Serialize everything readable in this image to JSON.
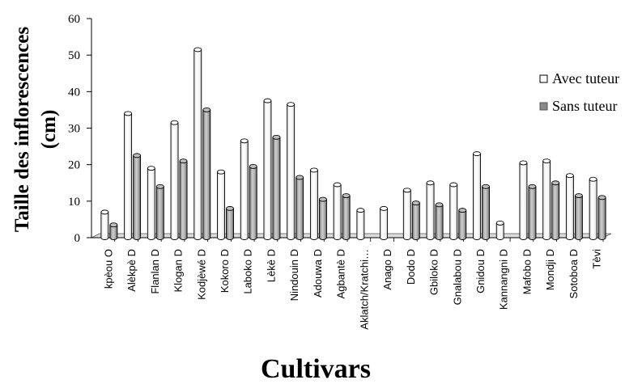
{
  "chart_data": {
    "type": "bar",
    "title": "",
    "xlabel": "Cultivars",
    "ylabel_line1": "Taille des inflorescences",
    "ylabel_line2": "(cm)",
    "ylim": [
      0,
      60
    ],
    "yticks": [
      "0",
      "10",
      "20",
      "30",
      "40",
      "50",
      "60"
    ],
    "grid": false,
    "legend_position": "right",
    "categories": [
      "kpèou O",
      "Alèkpè D",
      "Flanlan D",
      "Klogan D",
      "Kodjèwé D",
      "Kokoro D",
      "Laboko D",
      "Lèkè D",
      "Nindouin D",
      "Adouwa D",
      "Agbantè D",
      "Aklatch/Kratchi…",
      "Anago D",
      "Dodo D",
      "Gbiloko D",
      "Gnalabou D",
      "Gnidou D",
      "Kannangni D",
      "Mafobo D",
      "Mondji D",
      "Sotoboa D",
      "Tèvi"
    ],
    "series": [
      {
        "name": "Avec tuteur",
        "color": "#ffffff",
        "values": [
          7,
          34,
          19,
          31.5,
          51.5,
          18,
          26.5,
          37.5,
          36.5,
          18.5,
          14.5,
          7.5,
          8,
          13,
          15,
          14.5,
          23,
          4,
          20.5,
          21,
          17,
          16
        ]
      },
      {
        "name": "Sans tuteur",
        "color": "#8a8a8a",
        "values": [
          3.5,
          22.5,
          14,
          21,
          35,
          8,
          19.5,
          27.5,
          16.5,
          10.5,
          11.5,
          0,
          0,
          9.5,
          9,
          7.5,
          14,
          0,
          14,
          15,
          11.5,
          11
        ]
      }
    ]
  }
}
